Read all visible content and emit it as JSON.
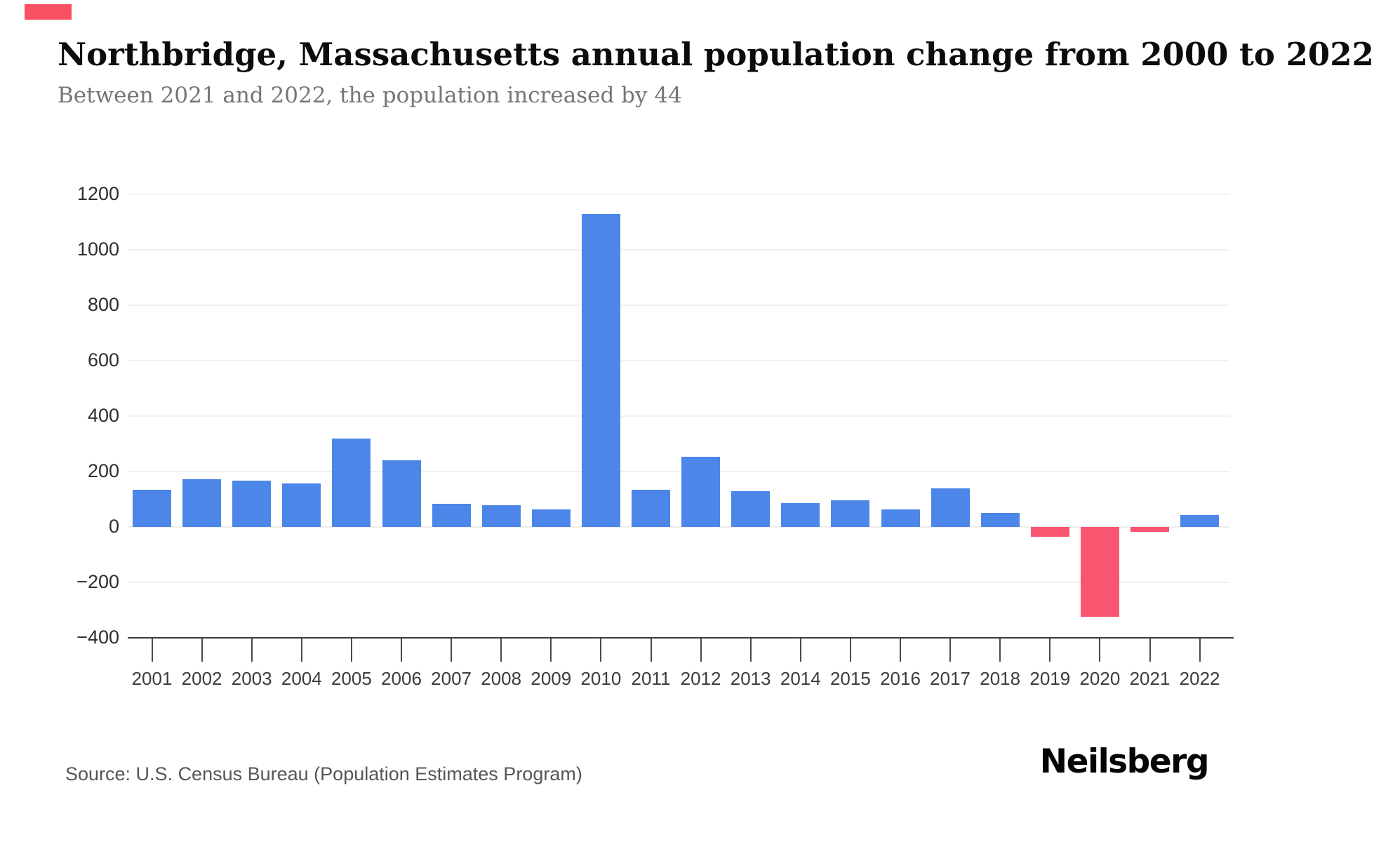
{
  "header": {
    "title": "Northbridge, Massachusetts annual population change from 2000 to 2022",
    "subtitle": "Between 2021 and 2022, the population increased by 44"
  },
  "footer": {
    "source": "Source: U.S. Census Bureau (Population Estimates Program)",
    "brand": "Neilsberg"
  },
  "accent": {
    "color": "#fa5064"
  },
  "chart_data": {
    "type": "bar",
    "title": "Northbridge, Massachusetts annual population change from 2000 to 2022",
    "xlabel": "",
    "ylabel": "",
    "categories": [
      "2001",
      "2002",
      "2003",
      "2004",
      "2005",
      "2006",
      "2007",
      "2008",
      "2009",
      "2010",
      "2011",
      "2012",
      "2013",
      "2014",
      "2015",
      "2016",
      "2017",
      "2018",
      "2019",
      "2020",
      "2021",
      "2022"
    ],
    "values": [
      135,
      173,
      168,
      158,
      318,
      240,
      84,
      79,
      64,
      1128,
      135,
      253,
      128,
      85,
      95,
      64,
      138,
      50,
      -35,
      -325,
      -18,
      44
    ],
    "ylim": [
      -400,
      1200
    ],
    "yticks": [
      1200,
      1000,
      800,
      600,
      400,
      200,
      0,
      -200,
      -400
    ],
    "grid": true,
    "legend": "none",
    "positive_color": "#4c86e8",
    "negative_color": "#fa5570"
  }
}
